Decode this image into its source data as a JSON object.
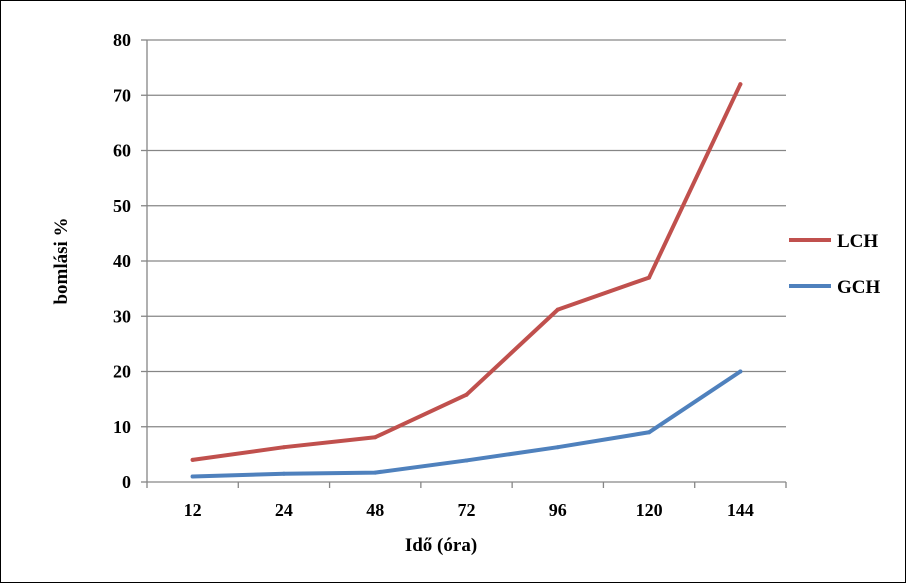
{
  "chart_data": {
    "type": "line",
    "categories": [
      "12",
      "24",
      "48",
      "72",
      "96",
      "120",
      "144"
    ],
    "series": [
      {
        "name": "LCH",
        "color": "#c0504d",
        "values": [
          4,
          6.3,
          8.1,
          15.8,
          31.2,
          37,
          72
        ]
      },
      {
        "name": "GCH",
        "color": "#4f81bd",
        "values": [
          1,
          1.5,
          1.7,
          3.9,
          6.3,
          9,
          20
        ]
      }
    ],
    "xlabel": "Idő (óra)",
    "ylabel": "bomlási %",
    "ylim": [
      0,
      80
    ],
    "yticks": [
      "0",
      "10",
      "20",
      "30",
      "40",
      "50",
      "60",
      "70",
      "80"
    ],
    "grid": true,
    "legend": "right"
  }
}
